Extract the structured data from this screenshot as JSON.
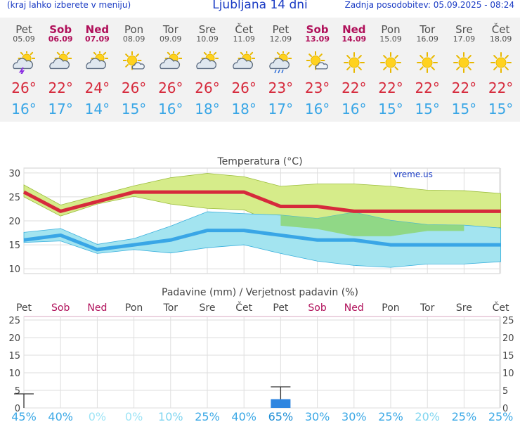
{
  "header": {
    "left_note": "(kraj lahko izberete v meniju)",
    "title": "Ljubljana 14 dni",
    "updated": "Zadnja posodobitev: 05.09.2025 - 08:24"
  },
  "days": [
    {
      "name": "Pet",
      "date": "05.09",
      "weekend": false,
      "icon": "partly-cloudy-thunder-icon",
      "tmax": "26°",
      "tmin": "16°"
    },
    {
      "name": "Sob",
      "date": "06.09",
      "weekend": true,
      "icon": "partly-cloudy-icon",
      "tmax": "22°",
      "tmin": "17°"
    },
    {
      "name": "Ned",
      "date": "07.09",
      "weekend": true,
      "icon": "partly-cloudy-icon",
      "tmax": "24°",
      "tmin": "14°"
    },
    {
      "name": "Pon",
      "date": "08.09",
      "weekend": false,
      "icon": "mostly-sunny-icon",
      "tmax": "26°",
      "tmin": "15°"
    },
    {
      "name": "Tor",
      "date": "09.09",
      "weekend": false,
      "icon": "partly-cloudy-icon",
      "tmax": "26°",
      "tmin": "16°"
    },
    {
      "name": "Sre",
      "date": "10.09",
      "weekend": false,
      "icon": "partly-cloudy-icon",
      "tmax": "26°",
      "tmin": "18°"
    },
    {
      "name": "Čet",
      "date": "11.09",
      "weekend": false,
      "icon": "partly-cloudy-icon",
      "tmax": "26°",
      "tmin": "18°"
    },
    {
      "name": "Pet",
      "date": "12.09",
      "weekend": false,
      "icon": "sun-cloud-rain-icon",
      "tmax": "23°",
      "tmin": "17°"
    },
    {
      "name": "Sob",
      "date": "13.09",
      "weekend": true,
      "icon": "mostly-sunny-icon",
      "tmax": "23°",
      "tmin": "16°"
    },
    {
      "name": "Ned",
      "date": "14.09",
      "weekend": true,
      "icon": "sun-icon",
      "tmax": "22°",
      "tmin": "16°"
    },
    {
      "name": "Pon",
      "date": "15.09",
      "weekend": false,
      "icon": "sun-icon",
      "tmax": "22°",
      "tmin": "15°"
    },
    {
      "name": "Tor",
      "date": "16.09",
      "weekend": false,
      "icon": "sun-icon",
      "tmax": "22°",
      "tmin": "15°"
    },
    {
      "name": "Sre",
      "date": "17.09",
      "weekend": false,
      "icon": "sun-icon",
      "tmax": "22°",
      "tmin": "15°"
    },
    {
      "name": "Čet",
      "date": "18.09",
      "weekend": false,
      "icon": "sun-icon",
      "tmax": "22°",
      "tmin": "15°"
    }
  ],
  "colors": {
    "tmax": "#d62a3c",
    "tmin": "#39a6e6",
    "weekend": "#b0105a",
    "max_band": "#d6ec8a",
    "min_band": "#a3e4f0",
    "overlap": "#8ed67a",
    "rain_bar": "#2f86e0"
  },
  "chart_data": [
    {
      "type": "line",
      "title": "Temperatura (°C)",
      "watermark": "vreme.us",
      "ylim": [
        9,
        31
      ],
      "yticks": [
        10,
        15,
        20,
        25,
        30
      ],
      "grid": true,
      "x": [
        0,
        1,
        2,
        3,
        4,
        5,
        6,
        7,
        8,
        9,
        10,
        11,
        12,
        13
      ],
      "series": [
        {
          "key": "tmax",
          "values": [
            26,
            22,
            24,
            26,
            26,
            26,
            26,
            23,
            23,
            22,
            22,
            22,
            22,
            22
          ]
        },
        {
          "key": "tmin",
          "values": [
            16,
            17,
            14,
            15,
            16,
            18,
            18,
            17,
            16,
            16,
            15,
            15,
            15,
            15
          ]
        }
      ],
      "bands": [
        {
          "key": "tmax_range",
          "upper": [
            27.5,
            23.3,
            25.3,
            27.3,
            29,
            29.9,
            29.2,
            27.2,
            27.7,
            27.7,
            27.2,
            26.4,
            26.3,
            25.7
          ],
          "lower": [
            25,
            21,
            23.5,
            25.1,
            23.5,
            22.6,
            22.3,
            19,
            18.3,
            16.8,
            16.8,
            17.9,
            17.9,
            18.6
          ]
        },
        {
          "key": "tmin_range",
          "upper": [
            17.6,
            18.4,
            15.1,
            16.3,
            18.9,
            21.9,
            21.5,
            21.2,
            20.5,
            21.8,
            20.1,
            19.2,
            19.1,
            18.5
          ],
          "lower": [
            15.5,
            15.8,
            13.2,
            14,
            13.3,
            14.4,
            15,
            13.2,
            11.6,
            10.7,
            10.3,
            11,
            11,
            11.5
          ]
        }
      ]
    },
    {
      "type": "bar",
      "title": "Padavine (mm) / Verjetnost padavin (%)",
      "categories": [
        "Pet",
        "Sob",
        "Ned",
        "Pon",
        "Tor",
        "Sre",
        "Čet",
        "Pet",
        "Sob",
        "Ned",
        "Pon",
        "Tor",
        "Sre",
        "Čet"
      ],
      "category_weekend": [
        false,
        true,
        true,
        false,
        false,
        false,
        false,
        false,
        true,
        true,
        false,
        false,
        false,
        false
      ],
      "ylim": [
        0,
        26
      ],
      "yticks": [
        0,
        5,
        10,
        15,
        20,
        25
      ],
      "values": [
        0,
        0,
        0,
        0,
        0,
        0,
        0,
        2.5,
        0,
        0,
        0,
        0,
        0,
        0
      ],
      "range_high": [
        4,
        0,
        0,
        0,
        0,
        0,
        0,
        6,
        0,
        0,
        0,
        0,
        0,
        0
      ],
      "probability": [
        "45%",
        "40%",
        "0%",
        "0%",
        "10%",
        "25%",
        "40%",
        "65%",
        "30%",
        "30%",
        "25%",
        "20%",
        "25%",
        "25%"
      ]
    }
  ]
}
